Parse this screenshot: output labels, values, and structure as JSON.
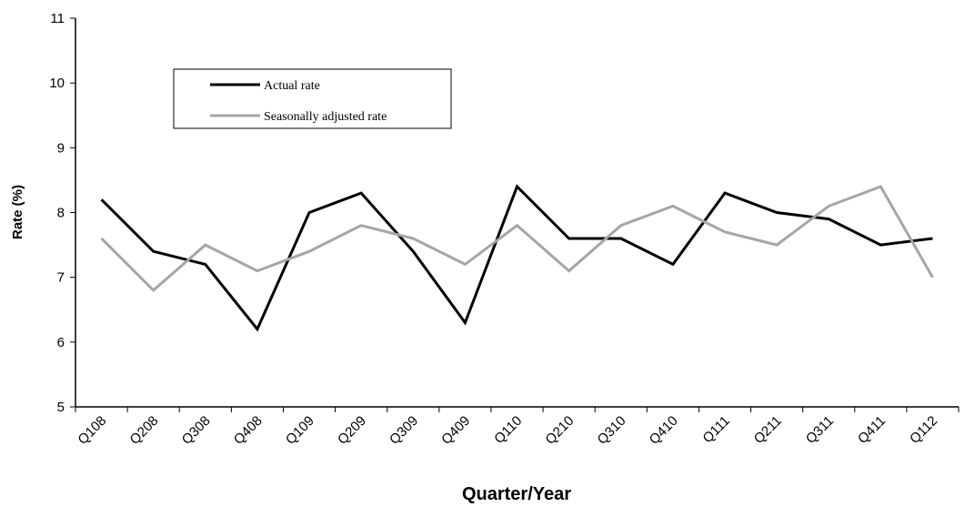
{
  "chart_data": {
    "type": "line",
    "xlabel": "Quarter/Year",
    "ylabel": "Rate (%)",
    "ylim": [
      5,
      11
    ],
    "yticks": [
      5,
      6,
      7,
      8,
      9,
      10,
      11
    ],
    "grid": false,
    "legend": "top-left",
    "categories": [
      "Q108",
      "Q208",
      "Q308",
      "Q408",
      "Q109",
      "Q209",
      "Q309",
      "Q409",
      "Q110",
      "Q210",
      "Q310",
      "Q410",
      "Q111",
      "Q211",
      "Q311",
      "Q411",
      "Q112"
    ],
    "series": [
      {
        "name": "Actual rate",
        "color": "#000000",
        "values": [
          8.2,
          7.4,
          7.2,
          6.2,
          8.0,
          8.3,
          7.4,
          6.3,
          8.4,
          7.6,
          7.6,
          7.2,
          8.3,
          8.0,
          7.9,
          7.5,
          7.6
        ]
      },
      {
        "name": "Seasonally adjusted rate",
        "color": "#a6a6a6",
        "values": [
          7.6,
          6.8,
          7.5,
          7.1,
          7.4,
          7.8,
          7.6,
          7.2,
          7.8,
          7.1,
          7.8,
          8.1,
          7.7,
          7.5,
          8.1,
          8.4,
          7.0
        ]
      }
    ]
  }
}
